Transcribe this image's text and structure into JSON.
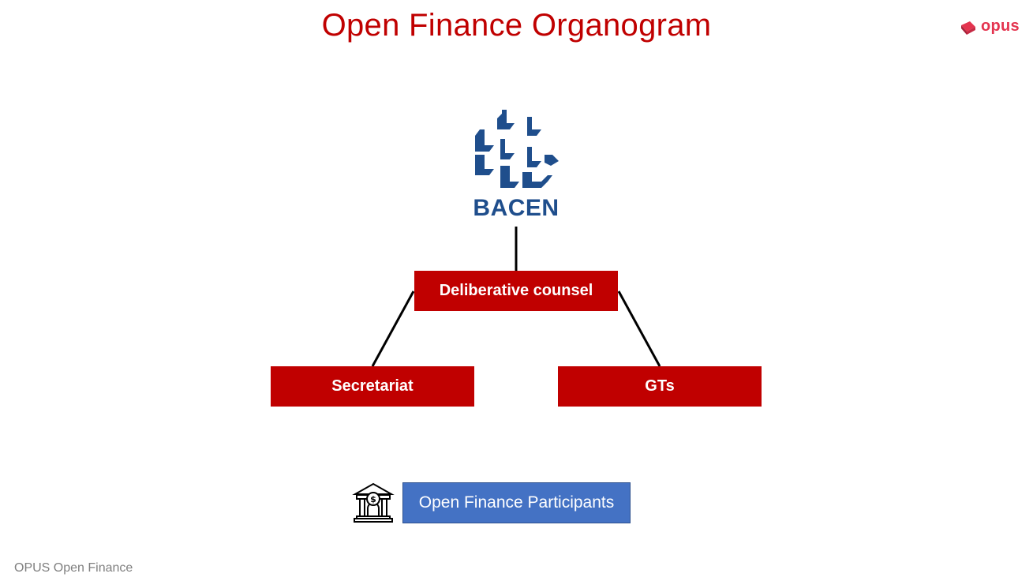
{
  "title": "Open Finance Organogram",
  "brand": {
    "name": "opus",
    "color": "#e4344f"
  },
  "root": {
    "label": "BACEN",
    "color": "#1f4e8c"
  },
  "nodes": {
    "deliberative": "Deliberative counsel",
    "secretariat": "Secretariat",
    "gts": "GTs"
  },
  "participants": {
    "label": "Open Finance Participants",
    "icon": "bank-icon"
  },
  "footer": "OPUS Open Finance",
  "colors": {
    "node": "#c00000",
    "participants": "#4472c4"
  }
}
